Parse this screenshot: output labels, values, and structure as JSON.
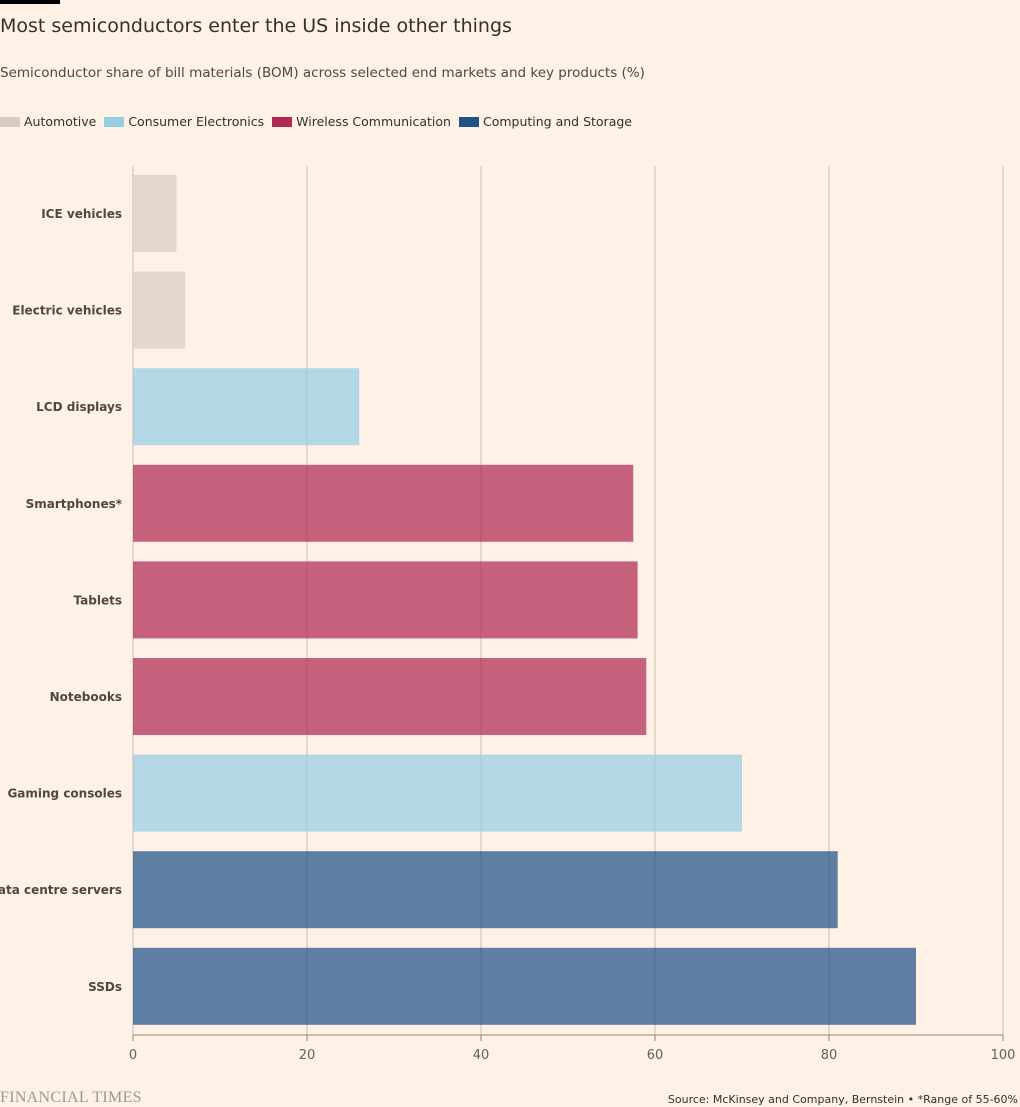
{
  "chart_data": {
    "type": "bar",
    "orientation": "horizontal",
    "title": "Most semiconductors enter the US inside other things",
    "subtitle": "Semiconductor share of bill materials (BOM) across selected end markets and key products (%)",
    "categories": [
      "ICE vehicles",
      "Electric vehicles",
      "LCD displays",
      "Smartphones*",
      "Tablets",
      "Notebooks",
      "Gaming consoles",
      "Data centre servers",
      "SSDs"
    ],
    "values": [
      5,
      6,
      26,
      57.5,
      58,
      59,
      70,
      81,
      90
    ],
    "groups": [
      "Automotive",
      "Automotive",
      "Consumer Electronics",
      "Wireless Communication",
      "Wireless Communication",
      "Wireless Communication",
      "Consumer Electronics",
      "Computing and Storage",
      "Computing and Storage"
    ],
    "legend": [
      {
        "name": "Automotive",
        "color": "#d9cdc1"
      },
      {
        "name": "Consumer Electronics",
        "color": "#96cde4"
      },
      {
        "name": "Wireless Communication",
        "color": "#b02a55"
      },
      {
        "name": "Computing and Storage",
        "color": "#205288"
      }
    ],
    "legend_placement": "top-left",
    "xlim": [
      0,
      100
    ],
    "xticks": [
      "0",
      "20",
      "40",
      "60",
      "80",
      "100"
    ],
    "grid": true,
    "xlabel": "",
    "ylabel": ""
  },
  "footer": {
    "logo": "FINANCIAL TIMES",
    "source": "Source: McKinsey and Company, Bernstein • *Range of 55-60%"
  }
}
